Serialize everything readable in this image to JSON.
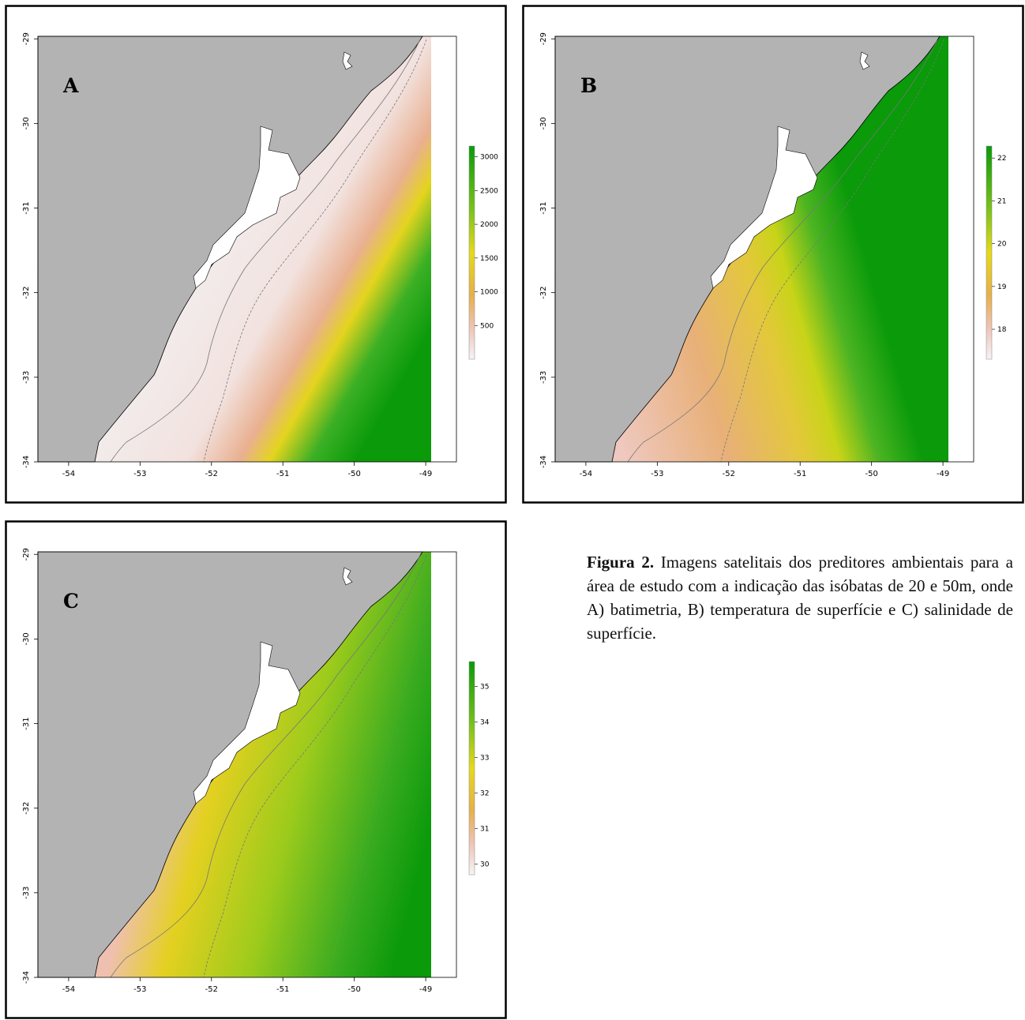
{
  "figure": {
    "panels": [
      {
        "label": "A",
        "xlim": [
          -54.43,
          -48.57
        ],
        "ylim": [
          -34,
          -28.97
        ],
        "xticks": [
          -54,
          -53,
          -52,
          -51,
          -50,
          -49
        ],
        "yticks": [
          -29,
          -30,
          -31,
          -32,
          -33,
          -34
        ],
        "colorbar": {
          "lim": [
            0,
            3160
          ],
          "ticks": [
            500,
            1000,
            1500,
            2000,
            2500,
            3000
          ]
        }
      },
      {
        "label": "B",
        "xlim": [
          -54.43,
          -48.57
        ],
        "ylim": [
          -34,
          -28.97
        ],
        "xticks": [
          -54,
          -53,
          -52,
          -51,
          -50,
          -49
        ],
        "yticks": [
          -29,
          -30,
          -31,
          -32,
          -33,
          -34
        ],
        "colorbar": {
          "lim": [
            17.3,
            22.28
          ],
          "ticks": [
            18,
            19,
            20,
            21,
            22
          ]
        }
      },
      {
        "label": "C",
        "xlim": [
          -54.43,
          -48.57
        ],
        "ylim": [
          -34,
          -28.97
        ],
        "xticks": [
          -54,
          -53,
          -52,
          -51,
          -50,
          -49
        ],
        "yticks": [
          -29,
          -30,
          -31,
          -32,
          -33,
          -34
        ],
        "colorbar": {
          "lim": [
            29.7,
            35.7
          ],
          "ticks": [
            30,
            31,
            32,
            33,
            34,
            35
          ]
        }
      }
    ],
    "caption": {
      "label": "Figura 2.",
      "text": "Imagens satelitais dos preditores ambientais para a área de estudo com a indicação das isóbatas de 20 e 50m, onde A) batimetria, B) temperatura de superfície e C) salinidade de superfície."
    }
  }
}
